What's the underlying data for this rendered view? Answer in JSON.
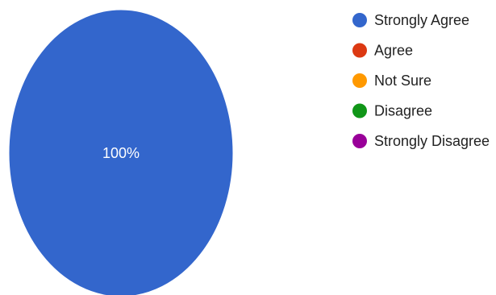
{
  "chart_data": {
    "type": "pie",
    "title": "",
    "categories": [
      "Strongly Agree",
      "Agree",
      "Not Sure",
      "Disagree",
      "Strongly Disagree"
    ],
    "values": [
      100,
      0,
      0,
      0,
      0
    ],
    "colors": [
      "#3366cc",
      "#dc3912",
      "#ff9900",
      "#109618",
      "#990099"
    ],
    "slice_labels": [
      "100%",
      "",
      "",
      "",
      ""
    ],
    "legend_position": "right"
  }
}
